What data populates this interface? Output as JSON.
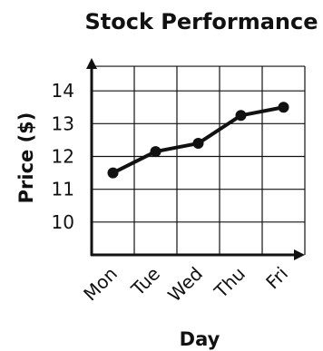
{
  "chart_data": {
    "type": "line",
    "title": "Stock Performance",
    "xlabel": "Day",
    "ylabel": "Price ($)",
    "categories": [
      "Mon",
      "Tue",
      "Wed",
      "Thu",
      "Fri"
    ],
    "values": [
      11.5,
      12.15,
      12.4,
      13.25,
      13.5
    ],
    "ylim": [
      9,
      15
    ],
    "yticks": [
      10,
      11,
      12,
      13,
      14
    ],
    "grid": true,
    "legend": "none"
  }
}
